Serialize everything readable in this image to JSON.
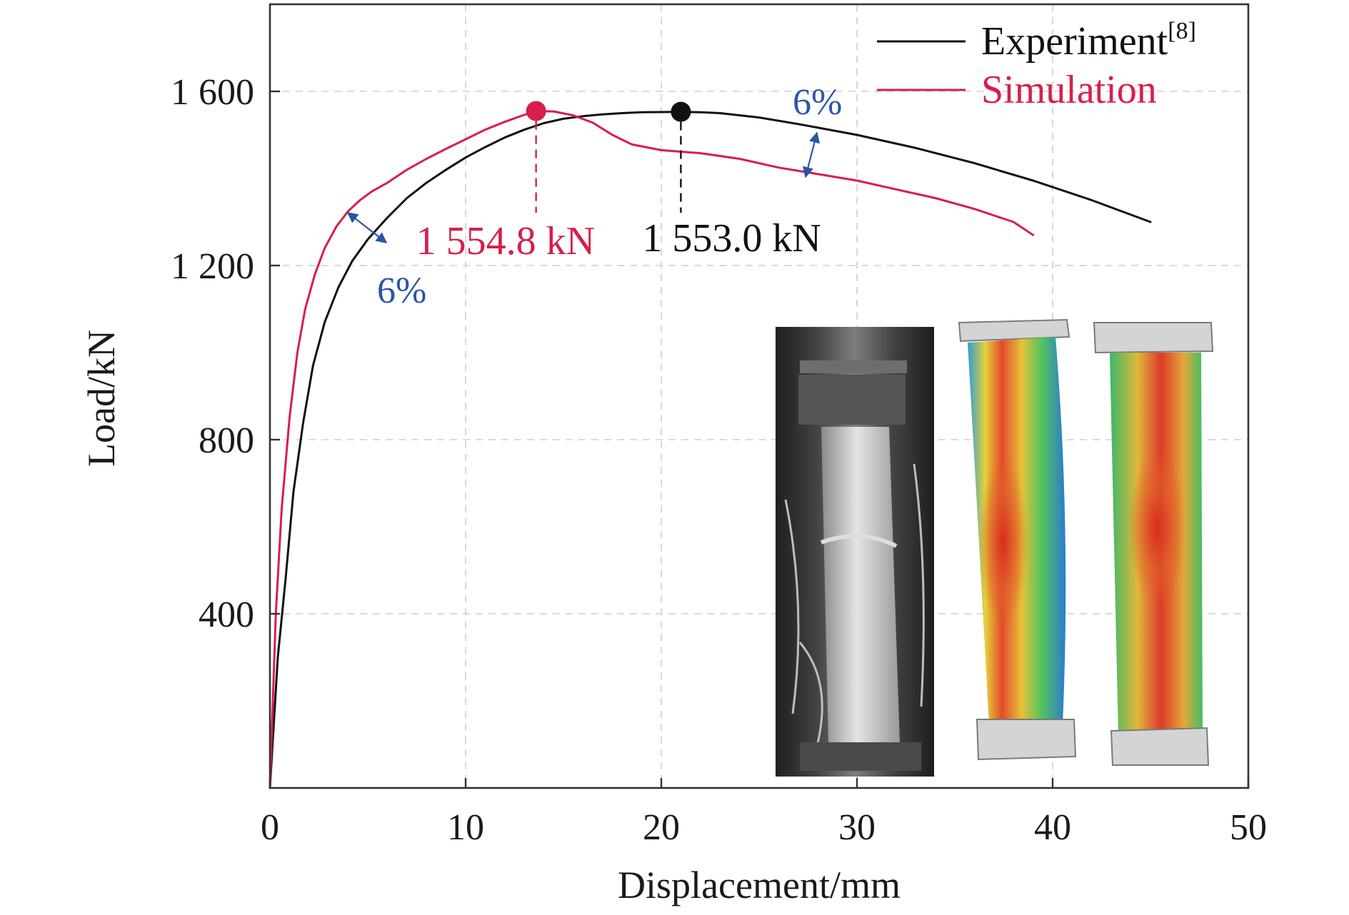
{
  "chart_data": {
    "type": "line",
    "xlabel": "Displacement/mm",
    "ylabel": "Load/kN",
    "xlim": [
      0,
      50
    ],
    "ylim": [
      0,
      1800
    ],
    "xticks": [
      0,
      10,
      20,
      30,
      40,
      50
    ],
    "xtick_labels": [
      "0",
      "10",
      "20",
      "30",
      "40",
      "50"
    ],
    "yticks": [
      400,
      800,
      1200,
      1600
    ],
    "ytick_labels": [
      "400",
      "800",
      "1 200",
      "1 600"
    ],
    "grid": true,
    "legend_position": "top-right",
    "legend_entries": [
      {
        "label": "Experiment",
        "superscript": "[8]",
        "color": "#111111"
      },
      {
        "label": "Simulation",
        "color": "#d81e4a"
      }
    ],
    "series": [
      {
        "name": "Experiment",
        "color": "#111111",
        "x": [
          0,
          0.4,
          0.8,
          1.2,
          1.7,
          2.2,
          2.8,
          3.5,
          4.2,
          5,
          6,
          7,
          8,
          9,
          10,
          11,
          12,
          13,
          14,
          15,
          16,
          17,
          18,
          19,
          20,
          21,
          22,
          23,
          25,
          27,
          30,
          33,
          36,
          39,
          42,
          45
        ],
        "y": [
          0,
          300,
          480,
          680,
          840,
          970,
          1070,
          1150,
          1210,
          1260,
          1310,
          1355,
          1390,
          1420,
          1448,
          1472,
          1494,
          1512,
          1527,
          1537,
          1543,
          1547,
          1550,
          1552,
          1552.5,
          1553,
          1552,
          1550,
          1540,
          1525,
          1500,
          1470,
          1435,
          1395,
          1350,
          1300
        ]
      },
      {
        "name": "Simulation",
        "color": "#d81e4a",
        "x": [
          0,
          0.3,
          0.6,
          1.0,
          1.4,
          1.8,
          2.3,
          2.8,
          3.4,
          4.0,
          4.6,
          5.2,
          6,
          7,
          8,
          9,
          10,
          11,
          12,
          13,
          13.6,
          14.5,
          15.5,
          16.5,
          17.5,
          18.5,
          20,
          22,
          24,
          26,
          28,
          30,
          32,
          34,
          36,
          38,
          39
        ],
        "y": [
          0,
          400,
          640,
          850,
          1000,
          1100,
          1180,
          1240,
          1290,
          1325,
          1350,
          1370,
          1390,
          1420,
          1445,
          1468,
          1490,
          1512,
          1530,
          1546,
          1554.8,
          1554,
          1545,
          1528,
          1500,
          1478,
          1465,
          1458,
          1445,
          1425,
          1410,
          1395,
          1375,
          1355,
          1330,
          1300,
          1270
        ]
      }
    ],
    "peaks": [
      {
        "series": "Simulation",
        "x": 13.6,
        "y": 1554.8,
        "label": "1 554.8 kN",
        "color": "#d81e4a"
      },
      {
        "series": "Experiment",
        "x": 21,
        "y": 1553,
        "label": "1 553.0 kN",
        "color": "#111111"
      }
    ],
    "annotations": [
      {
        "text": "6%",
        "color": "#2a55a8",
        "near": "elastic-plastic transition"
      },
      {
        "text": "6%",
        "color": "#2a55a8",
        "near": "post-peak descent"
      }
    ]
  }
}
